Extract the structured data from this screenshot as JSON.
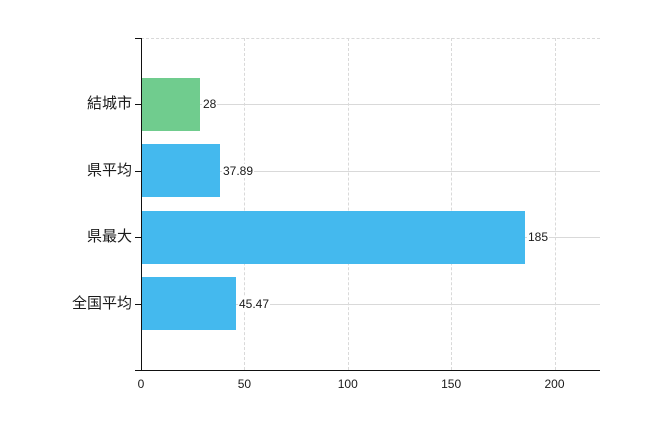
{
  "chart_data": {
    "type": "bar",
    "orientation": "horizontal",
    "title": "",
    "xlabel": "",
    "ylabel": "",
    "categories": [
      "結城市",
      "県平均",
      "県最大",
      "全国平均"
    ],
    "values": [
      28,
      37.89,
      185,
      45.47
    ],
    "value_labels": [
      "28",
      "37.89",
      "185",
      "45.47"
    ],
    "bar_colors": [
      "#70cc8e",
      "#44b9ee",
      "#44b9ee",
      "#44b9ee"
    ],
    "x_ticks": [
      0,
      50,
      100,
      150,
      200
    ],
    "x_tick_labels": [
      "0",
      "50",
      "100",
      "150",
      "200"
    ],
    "xlim": [
      0,
      222
    ],
    "grid": true,
    "legend": "none"
  },
  "colors": {
    "background": "#ffffff",
    "bar_blue": "#44b9ee",
    "bar_green": "#70cc8e",
    "gridline": "#d9d9d9",
    "axis": "#111111",
    "text": "#1a1a1a"
  }
}
